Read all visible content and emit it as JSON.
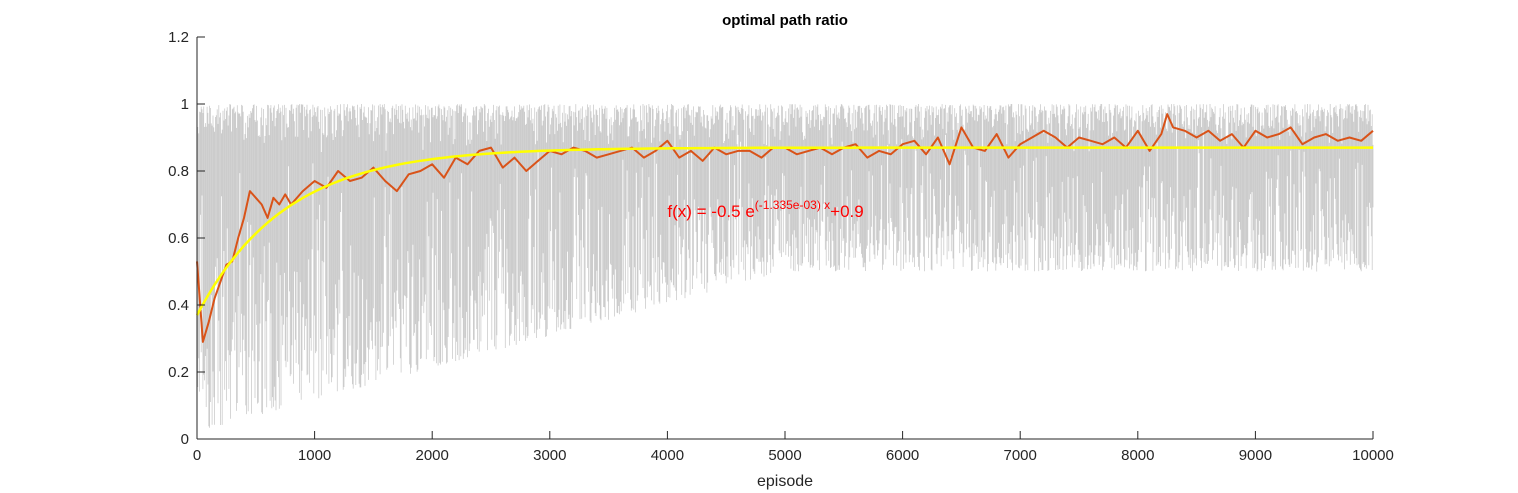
{
  "chart_data": {
    "type": "line",
    "title": "optimal path ratio",
    "xlabel": "episode",
    "ylabel": "",
    "xlim": [
      0,
      10000
    ],
    "ylim": [
      0,
      1.2
    ],
    "xticks": [
      "0",
      "1000",
      "2000",
      "3000",
      "4000",
      "5000",
      "6000",
      "7000",
      "8000",
      "9000",
      "10000"
    ],
    "yticks": [
      "0",
      "0.2",
      "0.4",
      "0.6",
      "0.8",
      "1",
      "1.2"
    ],
    "grid": false,
    "series": [
      {
        "role": "raw",
        "color": "#cccccc",
        "x": [
          0,
          5000,
          10000
        ],
        "y_upper": [
          1.0,
          1.0,
          1.0
        ],
        "y_lower": [
          0.02,
          0.5,
          0.5
        ]
      },
      {
        "role": "moving-average",
        "color": "#d95319",
        "x": [
          0,
          50,
          100,
          150,
          200,
          250,
          300,
          350,
          400,
          450,
          500,
          550,
          600,
          650,
          700,
          750,
          800,
          900,
          1000,
          1100,
          1200,
          1300,
          1400,
          1500,
          1600,
          1700,
          1800,
          1900,
          2000,
          2100,
          2200,
          2300,
          2400,
          2500,
          2600,
          2700,
          2800,
          2900,
          3000,
          3100,
          3200,
          3300,
          3400,
          3500,
          3600,
          3700,
          3800,
          3900,
          4000,
          4100,
          4200,
          4300,
          4400,
          4500,
          4600,
          4700,
          4800,
          4900,
          5000,
          5100,
          5200,
          5300,
          5400,
          5500,
          5600,
          5700,
          5800,
          5900,
          6000,
          6100,
          6200,
          6300,
          6400,
          6500,
          6600,
          6700,
          6800,
          6900,
          7000,
          7100,
          7200,
          7300,
          7400,
          7500,
          7600,
          7700,
          7800,
          7900,
          8000,
          8100,
          8200,
          8250,
          8300,
          8400,
          8500,
          8600,
          8700,
          8800,
          8900,
          9000,
          9100,
          9200,
          9300,
          9400,
          9500,
          9600,
          9700,
          9800,
          9900,
          10000
        ],
        "y": [
          0.53,
          0.29,
          0.35,
          0.42,
          0.47,
          0.52,
          0.53,
          0.6,
          0.66,
          0.74,
          0.72,
          0.7,
          0.66,
          0.72,
          0.7,
          0.73,
          0.7,
          0.74,
          0.77,
          0.75,
          0.8,
          0.77,
          0.78,
          0.81,
          0.77,
          0.74,
          0.79,
          0.8,
          0.82,
          0.78,
          0.84,
          0.82,
          0.86,
          0.87,
          0.81,
          0.84,
          0.8,
          0.83,
          0.86,
          0.85,
          0.87,
          0.86,
          0.84,
          0.85,
          0.86,
          0.87,
          0.84,
          0.86,
          0.89,
          0.84,
          0.86,
          0.83,
          0.87,
          0.85,
          0.86,
          0.86,
          0.84,
          0.87,
          0.87,
          0.85,
          0.86,
          0.87,
          0.85,
          0.87,
          0.88,
          0.84,
          0.86,
          0.85,
          0.88,
          0.89,
          0.85,
          0.9,
          0.82,
          0.93,
          0.87,
          0.86,
          0.91,
          0.84,
          0.88,
          0.9,
          0.92,
          0.9,
          0.87,
          0.9,
          0.89,
          0.88,
          0.9,
          0.87,
          0.92,
          0.86,
          0.91,
          0.97,
          0.93,
          0.92,
          0.9,
          0.92,
          0.89,
          0.91,
          0.87,
          0.92,
          0.9,
          0.91,
          0.93,
          0.88,
          0.9,
          0.91,
          0.89,
          0.9,
          0.89,
          0.92
        ]
      },
      {
        "role": "fit",
        "color": "#ffff00",
        "function": "exponential",
        "a": -0.5,
        "b": -0.001335,
        "c": 0.87
      }
    ],
    "annotation": {
      "prefix": "f(x) = -0.5 e",
      "exponent": "(-1.335e-03) x",
      "suffix": "+0.9",
      "x": 4000,
      "y": 0.68,
      "color": "#ff0000"
    }
  }
}
